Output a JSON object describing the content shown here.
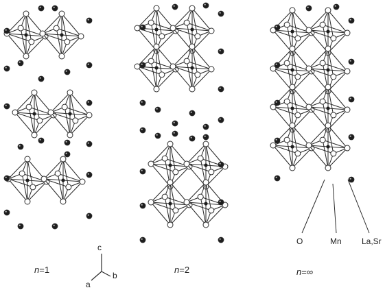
{
  "structures": [
    {
      "label_var": "n",
      "label_value": "=1"
    },
    {
      "label_var": "n",
      "label_value": "=2"
    },
    {
      "label_var": "n",
      "label_value": "=∞"
    }
  ],
  "legend": {
    "oxygen": "O",
    "manganese": "Mn",
    "cation": "La,Sr"
  },
  "axes": {
    "c": "c",
    "a": "a",
    "b": "b"
  },
  "colors": {
    "line": "#2b2b2b",
    "atom_dark": "#1e1e1e",
    "atom_light": "#ffffff",
    "text": "#222222"
  }
}
